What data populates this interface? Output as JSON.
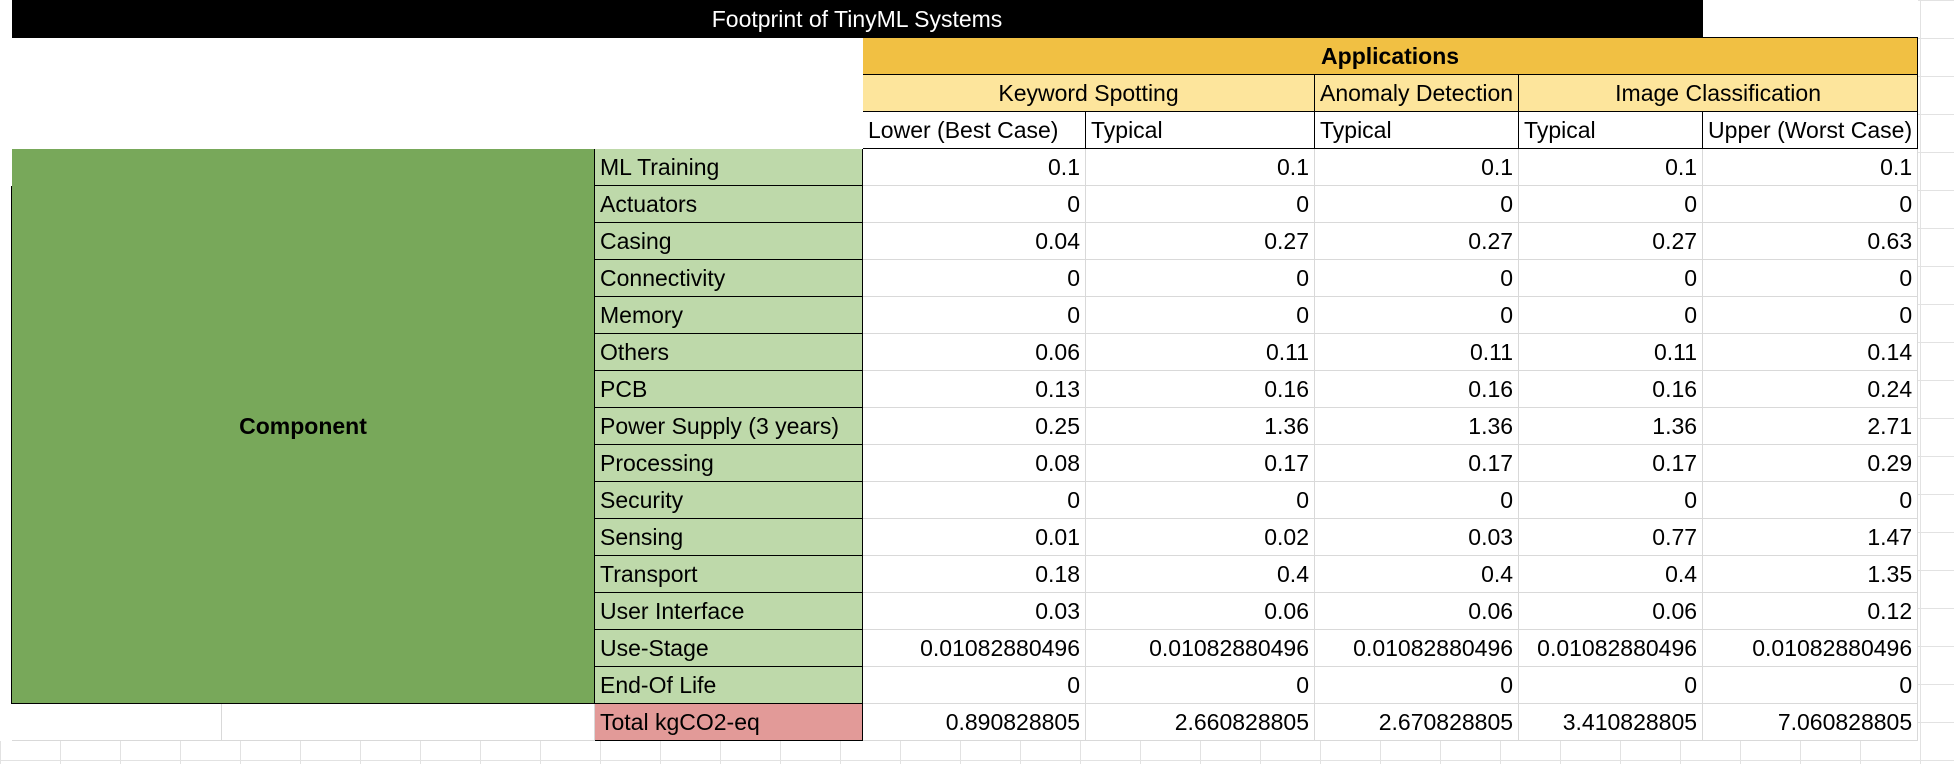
{
  "chart_data": {
    "type": "table",
    "title": "Footprint of TinyML Systems",
    "group_header": "Applications",
    "row_group_label": "Component",
    "applications": [
      {
        "name": "Keyword Spotting",
        "scenarios": [
          "Lower (Best Case)",
          "Typical"
        ]
      },
      {
        "name": "Anomaly Detection",
        "scenarios": [
          "Typical"
        ]
      },
      {
        "name": "Image Classification",
        "scenarios": [
          "Typical",
          "Upper (Worst Case)"
        ]
      }
    ],
    "rows": [
      {
        "label": "ML Training",
        "values": [
          "0.1",
          "0.1",
          "0.1",
          "0.1",
          "0.1"
        ]
      },
      {
        "label": "Actuators",
        "values": [
          "0",
          "0",
          "0",
          "0",
          "0"
        ]
      },
      {
        "label": "Casing",
        "values": [
          "0.04",
          "0.27",
          "0.27",
          "0.27",
          "0.63"
        ]
      },
      {
        "label": "Connectivity",
        "values": [
          "0",
          "0",
          "0",
          "0",
          "0"
        ]
      },
      {
        "label": "Memory",
        "values": [
          "0",
          "0",
          "0",
          "0",
          "0"
        ]
      },
      {
        "label": "Others",
        "values": [
          "0.06",
          "0.11",
          "0.11",
          "0.11",
          "0.14"
        ]
      },
      {
        "label": "PCB",
        "values": [
          "0.13",
          "0.16",
          "0.16",
          "0.16",
          "0.24"
        ]
      },
      {
        "label": "Power Supply (3 years)",
        "values": [
          "0.25",
          "1.36",
          "1.36",
          "1.36",
          "2.71"
        ]
      },
      {
        "label": "Processing",
        "values": [
          "0.08",
          "0.17",
          "0.17",
          "0.17",
          "0.29"
        ]
      },
      {
        "label": "Security",
        "values": [
          "0",
          "0",
          "0",
          "0",
          "0"
        ]
      },
      {
        "label": "Sensing",
        "values": [
          "0.01",
          "0.02",
          "0.03",
          "0.77",
          "1.47"
        ]
      },
      {
        "label": "Transport",
        "values": [
          "0.18",
          "0.4",
          "0.4",
          "0.4",
          "1.35"
        ]
      },
      {
        "label": "User Interface",
        "values": [
          "0.03",
          "0.06",
          "0.06",
          "0.06",
          "0.12"
        ]
      },
      {
        "label": "Use-Stage",
        "values": [
          "0.01082880496",
          "0.01082880496",
          "0.01082880496",
          "0.01082880496",
          "0.01082880496"
        ]
      },
      {
        "label": "End-Of Life",
        "values": [
          "0",
          "0",
          "0",
          "0",
          "0"
        ]
      }
    ],
    "total": {
      "label": "Total kgCO2-eq",
      "values": [
        "0.890828805",
        "2.660828805",
        "2.670828805",
        "3.410828805",
        "7.060828805"
      ]
    }
  },
  "colors": {
    "title_bg": "#000000",
    "applications_header": "#f1c043",
    "application_name": "#fde59c",
    "component_group": "#78a85a",
    "row_label": "#bed9aa",
    "total_label": "#e29a98"
  }
}
